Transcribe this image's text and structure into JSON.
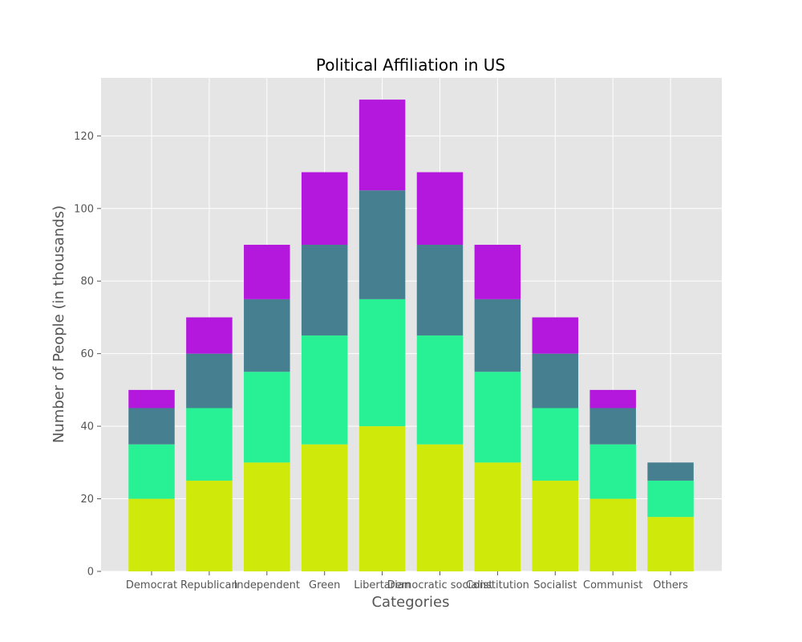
{
  "chart_data": {
    "type": "bar",
    "stacked": true,
    "title": "Political Affiliation in US",
    "xlabel": "Categories",
    "ylabel": "Number of People (in thousands)",
    "ylim": [
      0,
      136
    ],
    "yticks": [
      0,
      20,
      40,
      60,
      80,
      100,
      120
    ],
    "grid": true,
    "categories": [
      "Democrat",
      "Republican",
      "Independent",
      "Green",
      "Libertarian",
      "Democratic socialist",
      "Constitution",
      "Socialist",
      "Communist",
      "Others"
    ],
    "series": [
      {
        "color": "#cfe90a",
        "values": [
          20,
          25,
          30,
          35,
          40,
          35,
          30,
          25,
          20,
          15
        ]
      },
      {
        "color": "#28f095",
        "values": [
          15,
          20,
          25,
          30,
          35,
          30,
          25,
          20,
          15,
          10
        ]
      },
      {
        "color": "#468090",
        "values": [
          10,
          15,
          20,
          25,
          30,
          25,
          20,
          15,
          10,
          5
        ]
      },
      {
        "color": "#b318dc",
        "values": [
          5,
          10,
          15,
          20,
          25,
          20,
          15,
          10,
          5,
          0
        ]
      }
    ]
  },
  "style": {
    "plot_background": "#e5e5e5",
    "grid_color": "#ffffff",
    "text_color": "#555555"
  }
}
